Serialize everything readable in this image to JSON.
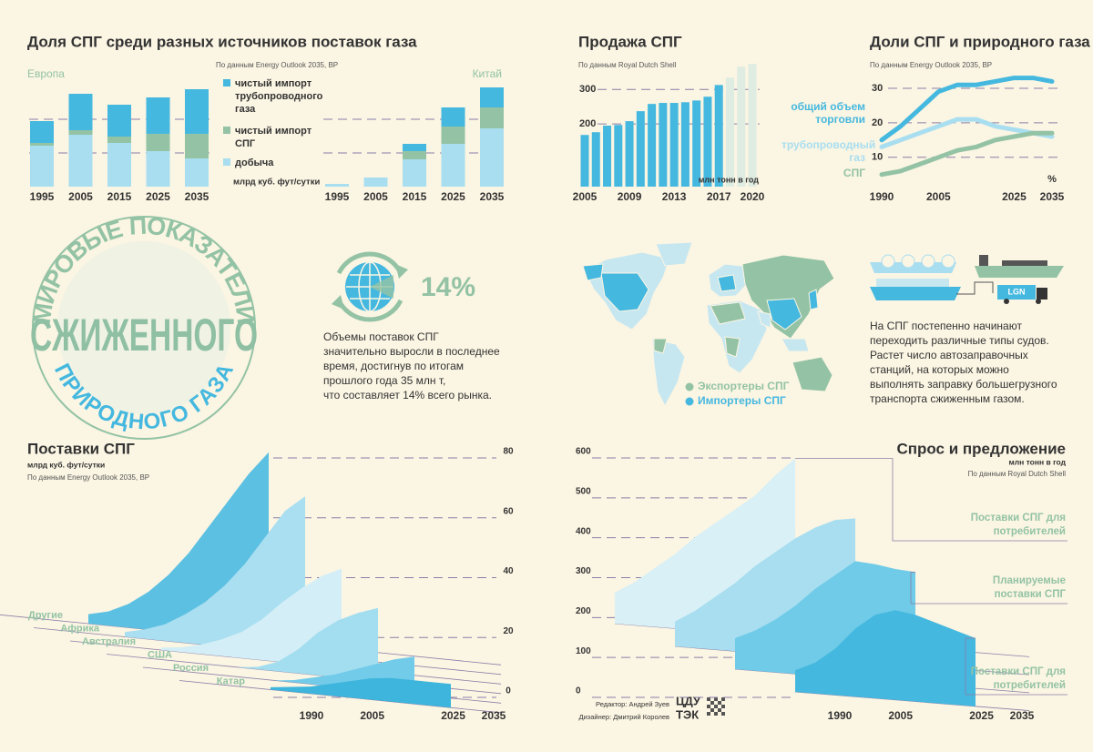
{
  "chart_data": [
    {
      "type": "stacked_bar",
      "title": "Доля СПГ среди разных источников поставок газа",
      "source": "По данным Energy Outlook 2035, BP",
      "label": "Европа",
      "unit": "млрд куб. фут/сутки",
      "categories": [
        "1995",
        "2005",
        "2015",
        "2025",
        "2035"
      ],
      "ylim": [
        0,
        120
      ],
      "series": [
        {
          "name": "добыча",
          "color": "#a8def0",
          "values": [
            45,
            57,
            48,
            39,
            31
          ]
        },
        {
          "name": "чистый импорт СПГ",
          "color": "#93c3a4",
          "values": [
            3,
            5,
            7,
            19,
            27
          ]
        },
        {
          "name": "чистый импорт трубопроводного газа",
          "color": "#45b8df",
          "values": [
            24,
            40,
            35,
            40,
            49
          ]
        }
      ]
    },
    {
      "type": "stacked_bar",
      "label": "Китай",
      "categories": [
        "1995",
        "2005",
        "2015",
        "2025",
        "2035"
      ],
      "ylim": [
        0,
        120
      ],
      "series": [
        {
          "color": "#a8def0",
          "values": [
            3,
            10,
            30,
            47,
            64
          ]
        },
        {
          "color": "#93c3a4",
          "values": [
            0,
            0,
            9,
            19,
            23
          ]
        },
        {
          "color": "#45b8df",
          "values": [
            0,
            0,
            8,
            21,
            22
          ]
        }
      ]
    },
    {
      "type": "bar",
      "title": "Продажа СПГ",
      "source": "По данным Royal Dutch Shell",
      "unit": "млн тонн в год",
      "categories": [
        "2005",
        null,
        null,
        null,
        "2009",
        null,
        null,
        null,
        "2013",
        null,
        null,
        null,
        "2017",
        null,
        null,
        "2020"
      ],
      "values": [
        168,
        176,
        195,
        197,
        208,
        237,
        258,
        261,
        261,
        263,
        268,
        279,
        313,
        334,
        366,
        374
      ],
      "colors": [
        "#45b8df",
        "#45b8df",
        "#45b8df",
        "#45b8df",
        "#45b8df",
        "#45b8df",
        "#45b8df",
        "#45b8df",
        "#45b8df",
        "#45b8df",
        "#45b8df",
        "#45b8df",
        "#45b8df",
        "#dfece1",
        "#dfece1",
        "#dfece1"
      ],
      "ylim": [
        18,
        380
      ],
      "yticks": [
        200,
        300
      ]
    },
    {
      "type": "line",
      "title": "Доли СПГ и природного газа",
      "source": "По данным Energy Outlook 2035, BP",
      "unit": "%",
      "x": [
        1990,
        1995,
        2000,
        2005,
        2010,
        2015,
        2020,
        2025,
        2030,
        2035
      ],
      "xlim": [
        1990,
        2035
      ],
      "xticks": [
        1990,
        2005,
        2025,
        2035
      ],
      "ylim": [
        1.5,
        35
      ],
      "yticks": [
        10,
        20,
        30
      ],
      "series": [
        {
          "name": "общий объем торговли",
          "color": "#45b8df",
          "values": [
            15,
            19,
            24,
            29,
            31,
            31,
            32,
            33,
            33,
            32
          ]
        },
        {
          "name": "трубопроводный газ",
          "color": "#a8def0",
          "values": [
            13,
            15,
            17,
            19,
            21,
            21,
            19,
            18,
            17,
            16
          ]
        },
        {
          "name": "СПГ",
          "color": "#93c3a4",
          "values": [
            5,
            6,
            8,
            10,
            12,
            13,
            15,
            16,
            17,
            17
          ]
        }
      ]
    },
    {
      "type": "layered_area",
      "title": "Поставки СПГ",
      "unit": "млрд куб. фут/сутки",
      "source": "По данным Energy Outlook 2035, BP",
      "x": [
        1990,
        1995,
        2000,
        2005,
        2010,
        2015,
        2020,
        2025,
        2030,
        2035
      ],
      "xticks": [
        1990,
        2005,
        2025,
        2035
      ],
      "ylim": [
        0,
        80
      ],
      "yticks": [
        0,
        20,
        40,
        60,
        80
      ],
      "series": [
        {
          "name": "Другие",
          "color": "#5cc0e2",
          "values": [
            4,
            6,
            10,
            16,
            24,
            34,
            46,
            58,
            70,
            80
          ]
        },
        {
          "name": "Африка",
          "color": "#a9dff1",
          "values": [
            2,
            4,
            7,
            12,
            18,
            26,
            36,
            48,
            60,
            67
          ]
        },
        {
          "name": "Австралия",
          "color": "#d3eef6",
          "values": [
            1,
            2,
            4,
            7,
            11,
            17,
            25,
            32,
            38,
            42
          ]
        },
        {
          "name": "США",
          "color": "#a3ddf0",
          "values": [
            0,
            0,
            0,
            1,
            4,
            10,
            18,
            24,
            28,
            31
          ]
        },
        {
          "name": "Россия",
          "color": "#72cbe9",
          "values": [
            0,
            0,
            0,
            1,
            3,
            5,
            8,
            11,
            14,
            16
          ]
        },
        {
          "name": "Катар",
          "color": "#3db5dc",
          "values": [
            1,
            2,
            3,
            5,
            7,
            9,
            10,
            10,
            10,
            10
          ]
        }
      ]
    },
    {
      "type": "layered_area",
      "title": "Спрос и предложение",
      "unit": "млн тонн в год",
      "source": "По данным Royal Dutch Shell",
      "x": [
        1990,
        1995,
        2000,
        2005,
        2010,
        2015,
        2020,
        2025,
        2030,
        2035
      ],
      "xticks": [
        1990,
        2005,
        2025,
        2035
      ],
      "ylim": [
        0,
        600
      ],
      "yticks": [
        0,
        100,
        200,
        300,
        400,
        500,
        600
      ],
      "series": [
        {
          "name": "Поставки СПГ для потребителей",
          "color": "#d8f0f6",
          "values": [
            100,
            140,
            190,
            240,
            300,
            350,
            400,
            450,
            520,
            580
          ]
        },
        {
          "color": "#a8def0",
          "values": [
            80,
            120,
            170,
            220,
            280,
            330,
            380,
            420,
            450,
            460
          ]
        },
        {
          "name": "Планируемые поставки СПГ",
          "color": "#6fcbe8",
          "values": [
            100,
            130,
            170,
            220,
            280,
            330,
            380,
            375,
            365,
            360
          ]
        },
        {
          "name": "Поставки СПГ для потребителей",
          "color": "#45b8df",
          "values": [
            70,
            100,
            150,
            220,
            270,
            290,
            280,
            260,
            240,
            220
          ]
        }
      ]
    }
  ],
  "emblem": {
    "top": "МИРОВЫЕ ПОКАЗАТЕЛИ",
    "middle": "СЖИЖЕННОГО",
    "bottom": "ПРИРОДНОГО ГАЗА"
  },
  "growth": {
    "value": "14%",
    "text": [
      "Объемы поставок СПГ",
      "значительно выросли в последнее",
      "время, достигнув по итогам",
      "прошлого года 35 млн т,",
      "что составляет 14% всего рынка."
    ]
  },
  "map": {
    "legend": [
      "Экспортеры СПГ",
      "Импортеры СПГ"
    ]
  },
  "ships": {
    "label": "LGN",
    "text": [
      "На СПГ постепенно начинают",
      "переходить различные типы судов.",
      "Растет число автозаправочных",
      "станций, на которых можно",
      "выполнять заправку большегрузного",
      "транспорта сжиженным газом."
    ]
  },
  "credits": {
    "editor": "Редактор: Андрей Зуев",
    "designer": "Дизайнер: Дмитрий Королев",
    "logo": [
      "ЦДУ",
      "ТЭК"
    ]
  }
}
